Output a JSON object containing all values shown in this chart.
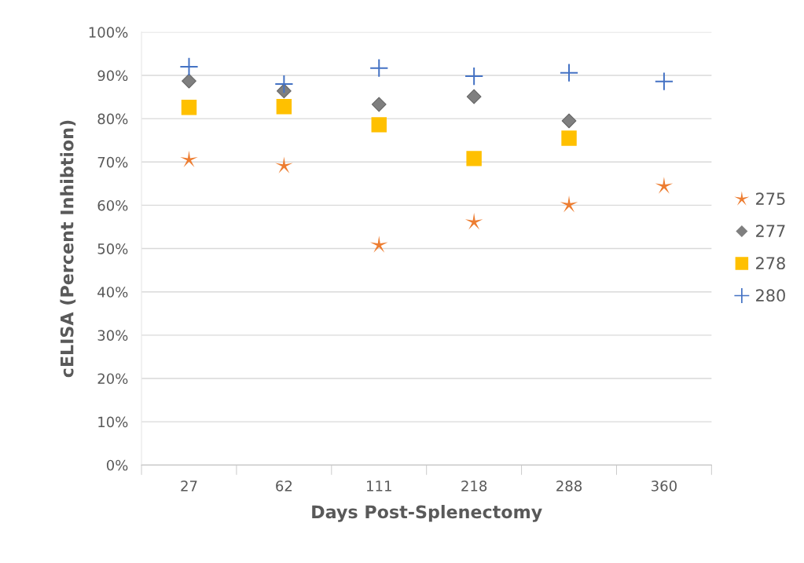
{
  "chart_data": {
    "type": "scatter",
    "xlabel": "Days Post-Splenectomy",
    "ylabel": "cELISA (Percent Inhibtion)",
    "categories": [
      "27",
      "62",
      "111",
      "218",
      "288",
      "360"
    ],
    "series": [
      {
        "name": "275",
        "color": "#ed7d31",
        "marker": "star",
        "values": [
          70.5,
          69.1,
          50.8,
          56.1,
          60.1,
          64.4
        ]
      },
      {
        "name": "277",
        "color": "#7f7f7f",
        "marker": "diamond",
        "values": [
          88.7,
          86.4,
          83.3,
          85.1,
          79.5,
          null
        ]
      },
      {
        "name": "278",
        "color": "#ffc000",
        "marker": "square",
        "values": [
          82.6,
          82.8,
          78.6,
          70.8,
          75.5,
          null
        ]
      },
      {
        "name": "280",
        "color": "#4472c4",
        "marker": "cross",
        "values": [
          92.0,
          88.0,
          91.7,
          89.8,
          90.6,
          88.6
        ]
      }
    ],
    "ylim": [
      0,
      100
    ],
    "yticks": [
      {
        "value": 0,
        "label": "0%"
      },
      {
        "value": 10,
        "label": "10%"
      },
      {
        "value": 20,
        "label": "20%"
      },
      {
        "value": 30,
        "label": "30%"
      },
      {
        "value": 40,
        "label": "40%"
      },
      {
        "value": 50,
        "label": "50%"
      },
      {
        "value": 60,
        "label": "60%"
      },
      {
        "value": 70,
        "label": "70%"
      },
      {
        "value": 80,
        "label": "80%"
      },
      {
        "value": 90,
        "label": "90%"
      },
      {
        "value": 100,
        "label": "100%"
      }
    ],
    "grid": "y",
    "legend": "right"
  }
}
